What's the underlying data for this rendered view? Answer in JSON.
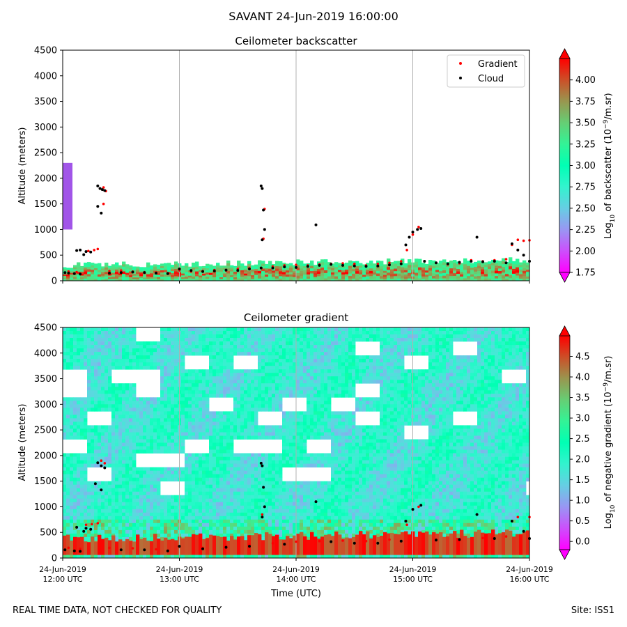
{
  "figure": {
    "suptitle": "SAVANT 24-Jun-2019 16:00:00",
    "footer_left": "REAL TIME DATA, NOT CHECKED FOR QUALITY",
    "footer_right": "Site: ISS1"
  },
  "chart_data": [
    {
      "type": "heatmap",
      "title": "Ceilometer backscatter",
      "ylabel": "Altitude (meters)",
      "xlabel": "",
      "ylim": [
        0,
        4500
      ],
      "yticks": [
        0,
        500,
        1000,
        1500,
        2000,
        2500,
        3000,
        3500,
        4000,
        4500
      ],
      "xlim": [
        0,
        4
      ],
      "xticks": [
        0,
        1,
        2,
        3,
        4
      ],
      "show_xticklabels": false,
      "grid": "vertical",
      "legend": {
        "placement": "top-right",
        "entries": [
          {
            "label": "Gradient",
            "color": "#ff0000"
          },
          {
            "label": "Cloud",
            "color": "#000000"
          }
        ]
      },
      "colorbar": {
        "label": "Log10 of backscatter (10^-9/m.sr)",
        "label_parts": [
          "Log",
          "10",
          " of backscatter (10",
          "−9",
          "/m.sr)"
        ],
        "range": [
          1.75,
          4.25
        ],
        "ticks": [
          "1.75",
          "2.00",
          "2.25",
          "2.50",
          "2.75",
          "3.00",
          "3.25",
          "3.50",
          "3.75",
          "4.00"
        ],
        "colormap": "rainbow"
      },
      "series": [
        {
          "name": "Gradient",
          "color": "#ff0000",
          "points": [
            [
              0.05,
              180
            ],
            [
              0.12,
              170
            ],
            [
              0.2,
              160
            ],
            [
              0.22,
              580
            ],
            [
              0.27,
              600
            ],
            [
              0.3,
              620
            ],
            [
              0.32,
              1800
            ],
            [
              0.35,
              1820
            ],
            [
              0.37,
              1750
            ],
            [
              0.35,
              1500
            ],
            [
              0.4,
              190
            ],
            [
              0.5,
              200
            ],
            [
              0.6,
              180
            ],
            [
              0.7,
              170
            ],
            [
              0.8,
              160
            ],
            [
              0.9,
              150
            ],
            [
              1.0,
              200
            ],
            [
              1.1,
              180
            ],
            [
              1.2,
              190
            ],
            [
              1.3,
              210
            ],
            [
              1.4,
              200
            ],
            [
              1.5,
              230
            ],
            [
              1.6,
              240
            ],
            [
              1.7,
              250
            ],
            [
              1.72,
              820
            ],
            [
              1.73,
              1400
            ],
            [
              1.8,
              280
            ],
            [
              1.9,
              300
            ],
            [
              2.0,
              310
            ],
            [
              2.1,
              300
            ],
            [
              2.2,
              320
            ],
            [
              2.3,
              330
            ],
            [
              2.4,
              340
            ],
            [
              2.5,
              330
            ],
            [
              2.6,
              300
            ],
            [
              2.7,
              330
            ],
            [
              2.8,
              350
            ],
            [
              2.9,
              380
            ],
            [
              2.95,
              600
            ],
            [
              3.0,
              900
            ],
            [
              3.05,
              1050
            ],
            [
              3.1,
              380
            ],
            [
              3.2,
              350
            ],
            [
              3.3,
              320
            ],
            [
              3.4,
              340
            ],
            [
              3.5,
              400
            ],
            [
              3.6,
              380
            ],
            [
              3.7,
              400
            ],
            [
              3.8,
              420
            ],
            [
              3.85,
              700
            ],
            [
              3.9,
              800
            ],
            [
              3.95,
              780
            ],
            [
              4.0,
              790
            ]
          ]
        },
        {
          "name": "Cloud",
          "color": "#000000",
          "points": [
            [
              0.02,
              160
            ],
            [
              0.05,
              150
            ],
            [
              0.1,
              140
            ],
            [
              0.15,
              130
            ],
            [
              0.12,
              590
            ],
            [
              0.15,
              600
            ],
            [
              0.2,
              570
            ],
            [
              0.24,
              560
            ],
            [
              0.18,
              510
            ],
            [
              0.3,
              1850
            ],
            [
              0.32,
              1800
            ],
            [
              0.34,
              1780
            ],
            [
              0.36,
              1760
            ],
            [
              0.3,
              1450
            ],
            [
              0.33,
              1320
            ],
            [
              0.4,
              150
            ],
            [
              0.5,
              160
            ],
            [
              0.6,
              170
            ],
            [
              0.7,
              160
            ],
            [
              0.8,
              150
            ],
            [
              0.9,
              140
            ],
            [
              1.0,
              230
            ],
            [
              1.1,
              200
            ],
            [
              1.2,
              180
            ],
            [
              1.3,
              190
            ],
            [
              1.4,
              210
            ],
            [
              1.5,
              200
            ],
            [
              1.6,
              230
            ],
            [
              1.7,
              250
            ],
            [
              1.7,
              1850
            ],
            [
              1.71,
              1800
            ],
            [
              1.72,
              1380
            ],
            [
              1.73,
              1000
            ],
            [
              1.71,
              800
            ],
            [
              1.8,
              250
            ],
            [
              1.9,
              270
            ],
            [
              2.0,
              260
            ],
            [
              2.1,
              280
            ],
            [
              2.17,
              1090
            ],
            [
              2.2,
              300
            ],
            [
              2.3,
              320
            ],
            [
              2.4,
              300
            ],
            [
              2.5,
              290
            ],
            [
              2.6,
              280
            ],
            [
              2.7,
              290
            ],
            [
              2.8,
              310
            ],
            [
              2.9,
              330
            ],
            [
              2.94,
              700
            ],
            [
              2.97,
              850
            ],
            [
              3.0,
              950
            ],
            [
              3.04,
              1000
            ],
            [
              3.07,
              1020
            ],
            [
              3.1,
              380
            ],
            [
              3.2,
              350
            ],
            [
              3.3,
              330
            ],
            [
              3.4,
              360
            ],
            [
              3.5,
              380
            ],
            [
              3.55,
              850
            ],
            [
              3.6,
              370
            ],
            [
              3.7,
              380
            ],
            [
              3.8,
              350
            ],
            [
              3.85,
              720
            ],
            [
              3.9,
              600
            ],
            [
              3.95,
              500
            ],
            [
              4.0,
              380
            ]
          ]
        }
      ]
    },
    {
      "type": "heatmap",
      "title": "Ceilometer gradient",
      "ylabel": "Altitude (meters)",
      "xlabel": "Time (UTC)",
      "ylim": [
        0,
        4500
      ],
      "yticks": [
        0,
        500,
        1000,
        1500,
        2000,
        2500,
        3000,
        3500,
        4000,
        4500
      ],
      "xlim": [
        0,
        4
      ],
      "xticks": [
        0,
        1,
        2,
        3,
        4
      ],
      "xticklabels": [
        [
          "24-Jun-2019",
          "12:00 UTC"
        ],
        [
          "24-Jun-2019",
          "13:00 UTC"
        ],
        [
          "24-Jun-2019",
          "14:00 UTC"
        ],
        [
          "24-Jun-2019",
          "15:00 UTC"
        ],
        [
          "24-Jun-2019",
          "16:00 UTC"
        ]
      ],
      "grid": "vertical",
      "colorbar": {
        "label": "Log10 of negative gradient (10^-9/m.sr)",
        "label_parts": [
          "Log",
          "10",
          " of negative gradient (10",
          "−9",
          "/m.sr)"
        ],
        "range": [
          -0.2,
          5.0
        ],
        "ticks": [
          "0.0",
          "0.5",
          "1.0",
          "1.5",
          "2.0",
          "2.5",
          "3.0",
          "3.5",
          "4.0",
          "4.5"
        ],
        "colormap": "rainbow"
      },
      "series": [
        {
          "name": "Gradient",
          "color": "#ff0000",
          "points": [
            [
              0.05,
              200
            ],
            [
              0.15,
              180
            ],
            [
              0.2,
              650
            ],
            [
              0.25,
              660
            ],
            [
              0.3,
              680
            ],
            [
              0.33,
              1900
            ],
            [
              0.36,
              1850
            ],
            [
              0.4,
              200
            ],
            [
              0.6,
              190
            ],
            [
              0.8,
              170
            ],
            [
              1.0,
              220
            ],
            [
              1.2,
              200
            ],
            [
              1.4,
              230
            ],
            [
              1.6,
              260
            ],
            [
              1.71,
              850
            ],
            [
              1.8,
              290
            ],
            [
              2.0,
              320
            ],
            [
              2.2,
              330
            ],
            [
              2.4,
              340
            ],
            [
              2.6,
              330
            ],
            [
              2.8,
              360
            ],
            [
              2.95,
              650
            ],
            [
              3.05,
              1000
            ],
            [
              3.2,
              360
            ],
            [
              3.4,
              350
            ],
            [
              3.6,
              390
            ],
            [
              3.8,
              420
            ],
            [
              3.9,
              800
            ],
            [
              4.0,
              800
            ]
          ]
        },
        {
          "name": "Cloud",
          "color": "#000000",
          "points": [
            [
              0.02,
              160
            ],
            [
              0.1,
              140
            ],
            [
              0.15,
              130
            ],
            [
              0.12,
              600
            ],
            [
              0.2,
              580
            ],
            [
              0.24,
              560
            ],
            [
              0.18,
              520
            ],
            [
              0.3,
              1860
            ],
            [
              0.33,
              1800
            ],
            [
              0.36,
              1760
            ],
            [
              0.28,
              1450
            ],
            [
              0.33,
              1330
            ],
            [
              0.5,
              160
            ],
            [
              0.7,
              160
            ],
            [
              0.9,
              140
            ],
            [
              1.0,
              230
            ],
            [
              1.2,
              180
            ],
            [
              1.4,
              210
            ],
            [
              1.6,
              230
            ],
            [
              1.7,
              1850
            ],
            [
              1.71,
              1800
            ],
            [
              1.72,
              1380
            ],
            [
              1.73,
              1000
            ],
            [
              1.71,
              800
            ],
            [
              1.9,
              270
            ],
            [
              2.17,
              1100
            ],
            [
              2.3,
              320
            ],
            [
              2.5,
              290
            ],
            [
              2.7,
              290
            ],
            [
              2.9,
              330
            ],
            [
              2.94,
              720
            ],
            [
              3.0,
              950
            ],
            [
              3.07,
              1030
            ],
            [
              3.2,
              350
            ],
            [
              3.4,
              360
            ],
            [
              3.55,
              850
            ],
            [
              3.7,
              380
            ],
            [
              3.85,
              720
            ],
            [
              3.95,
              520
            ],
            [
              4.0,
              380
            ]
          ]
        }
      ]
    }
  ]
}
